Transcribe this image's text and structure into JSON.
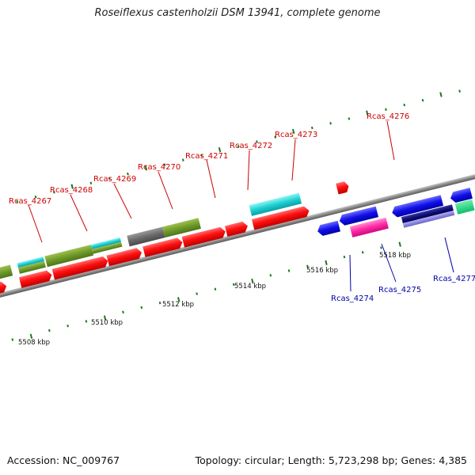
{
  "title": "Roseiflexus castenholzii DSM 13941, complete genome",
  "footer": {
    "accession": "Accession: NC_009767",
    "topology": "Topology: circular; Length: 5,723,298 bp; Genes: 4,385"
  },
  "colors": {
    "forward_label": "#cc0000",
    "reverse_label": "#0000aa",
    "backbone": "#9a9a9a",
    "tick": "#1a7a1a"
  },
  "scale_labels": [
    {
      "text": "5508 kbp"
    },
    {
      "text": "5510 kbp"
    },
    {
      "text": "5512 kbp"
    },
    {
      "text": "5514 kbp"
    },
    {
      "text": "5516 kbp"
    },
    {
      "text": "5518 kbp"
    }
  ],
  "gene_labels": [
    {
      "text": "Rcas_4267",
      "strand": "forward"
    },
    {
      "text": "Rcas_4268",
      "strand": "forward"
    },
    {
      "text": "Rcas_4269",
      "strand": "forward"
    },
    {
      "text": "Rcas_4270",
      "strand": "forward"
    },
    {
      "text": "Rcas_4271",
      "strand": "forward"
    },
    {
      "text": "Rcas_4272",
      "strand": "forward"
    },
    {
      "text": "Rcas_4273",
      "strand": "forward"
    },
    {
      "text": "Rcas_4276",
      "strand": "forward"
    },
    {
      "text": "Rcas_4274",
      "strand": "reverse"
    },
    {
      "text": "Rcas_4275",
      "strand": "reverse"
    },
    {
      "text": "Rcas_4277",
      "strand": "reverse"
    }
  ]
}
